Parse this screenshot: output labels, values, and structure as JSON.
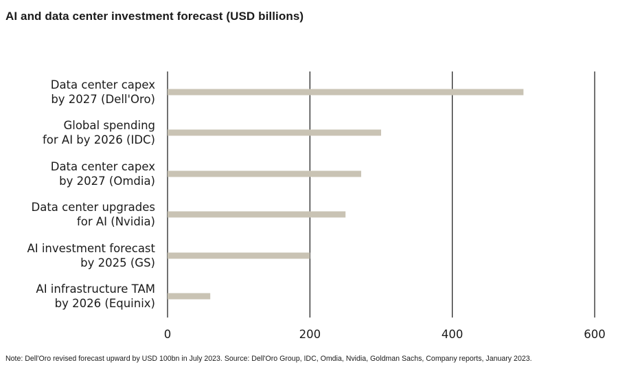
{
  "chart_data": {
    "type": "bar",
    "orientation": "horizontal",
    "title": "AI and data center investment forecast (USD billions)",
    "categories": [
      [
        "Data center capex",
        "by 2027 (Dell'Oro)"
      ],
      [
        "Global spending",
        "for AI by 2026 (IDC)"
      ],
      [
        "Data center capex",
        "by 2027 (Omdia)"
      ],
      [
        "Data center upgrades",
        "for AI (Nvidia)"
      ],
      [
        "AI investment forecast",
        "by 2025 (GS)"
      ],
      [
        "AI infrastructure TAM",
        "by 2026 (Equinix)"
      ]
    ],
    "values": [
      500,
      300,
      272,
      250,
      200,
      60
    ],
    "xlim": [
      0,
      600
    ],
    "xticks": [
      "0",
      "200",
      "400",
      "600"
    ],
    "grid": true,
    "bar_color": "#c9c3b4",
    "grid_color": "#111111",
    "note": "Note: Dell'Oro revised forecast upward by USD 100bn in July 2023. Source: Dell'Oro Group, IDC, Omdia, Nvidia, Goldman Sachs, Company reports, January 2023."
  }
}
